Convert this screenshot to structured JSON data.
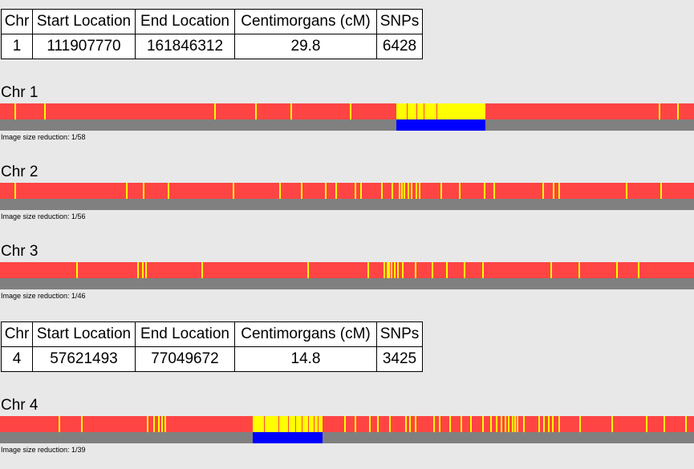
{
  "match_tables": [
    {
      "headers": [
        "Chr",
        "Start Location",
        "End Location",
        "Centimorgans (cM)",
        "SNPs"
      ],
      "row": [
        "1",
        "111907770",
        "161846312",
        "29.8",
        "6428"
      ]
    },
    {
      "headers": [
        "Chr",
        "Start Location",
        "End Location",
        "Centimorgans (cM)",
        "SNPs"
      ],
      "row": [
        "4",
        "57621493",
        "77049672",
        "14.8",
        "3425"
      ]
    }
  ],
  "chromosomes": [
    {
      "title": "Chr 1",
      "reduction_label": "Image size reduction: 1/58"
    },
    {
      "title": "Chr 2",
      "reduction_label": "Image size reduction: 1/56"
    },
    {
      "title": "Chr 3",
      "reduction_label": "Image size reduction: 1/46"
    },
    {
      "title": "Chr 4",
      "reduction_label": "Image size reduction: 1/39"
    }
  ],
  "colors": {
    "background": "#e8e8e8",
    "mismatch": "#ff4444",
    "match": "#ffff00",
    "track": "#808080",
    "matched_segment": "#0000ff"
  }
}
